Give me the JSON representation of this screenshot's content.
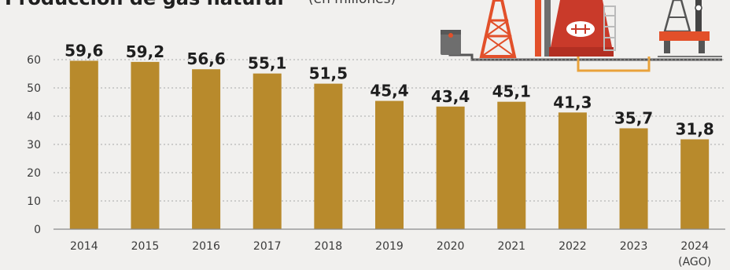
{
  "chart_data": {
    "type": "bar",
    "title": "Producción de gas natural",
    "subtitle": "(en millones)",
    "categories": [
      "2014",
      "2015",
      "2016",
      "2017",
      "2018",
      "2019",
      "2020",
      "2021",
      "2022",
      "2023",
      "2024"
    ],
    "category_notes": [
      "",
      "",
      "",
      "",
      "",
      "",
      "",
      "",
      "",
      "",
      "(AGO)"
    ],
    "values": [
      59.6,
      59.2,
      56.6,
      55.1,
      51.5,
      45.4,
      43.4,
      45.1,
      41.3,
      35.7,
      31.8
    ],
    "value_labels": [
      "59,6",
      "59,2",
      "56,6",
      "55,1",
      "51,5",
      "45,4",
      "43,4",
      "45,1",
      "41,3",
      "35,7",
      "31,8"
    ],
    "yticks": [
      0,
      10,
      20,
      30,
      40,
      50,
      60
    ],
    "ylim": [
      0,
      60
    ],
    "xlabel": "",
    "ylabel": "",
    "grid": true,
    "legend": "none",
    "colors": {
      "bar": "#b88a2c",
      "background": "#f1f0ee",
      "grid": "#a8a8a8",
      "text": "#1e1e1e",
      "illustration_orange": "#e2502a",
      "illustration_red": "#c93a2a",
      "illustration_gray": "#6e6e6e"
    },
    "illustration": [
      "oil-barrel-icon",
      "oil-derrick-icon",
      "gas-tank-icon",
      "drilling-rig-icon",
      "pipeline-icon"
    ]
  }
}
